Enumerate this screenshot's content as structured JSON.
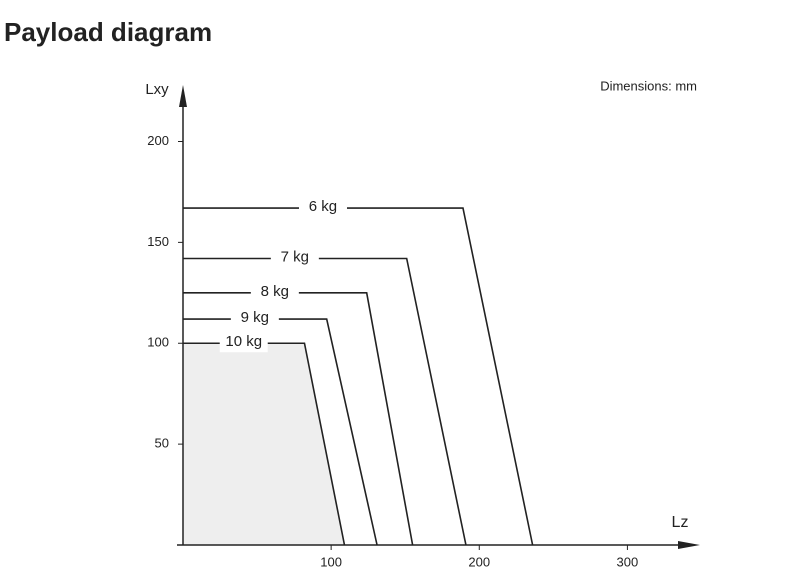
{
  "chart_data": {
    "type": "line",
    "title": "Payload diagram",
    "note": "Dimensions: mm",
    "x_label": "Lz",
    "y_label": "Lxy",
    "xlim": [
      0,
      349
    ],
    "ylim": [
      0,
      228
    ],
    "xticks": [
      100,
      200,
      300
    ],
    "yticks": [
      50,
      100,
      150,
      200
    ],
    "series": [
      {
        "name": "6 kg",
        "color": "#222222",
        "x": [
          0,
          189,
          236
        ],
        "values": [
          167,
          167,
          0
        ]
      },
      {
        "name": "7 kg",
        "color": "#222222",
        "x": [
          0,
          151,
          191
        ],
        "values": [
          142,
          142,
          0
        ]
      },
      {
        "name": "8 kg",
        "color": "#222222",
        "x": [
          0,
          124,
          155
        ],
        "values": [
          125,
          125,
          0
        ]
      },
      {
        "name": "9 kg",
        "color": "#222222",
        "x": [
          0,
          97,
          131
        ],
        "values": [
          112,
          112,
          0
        ]
      },
      {
        "name": "10 kg",
        "color": "#222222",
        "x": [
          0,
          82,
          109
        ],
        "values": [
          100,
          100,
          0
        ],
        "fill": "#eeeeee"
      }
    ]
  }
}
